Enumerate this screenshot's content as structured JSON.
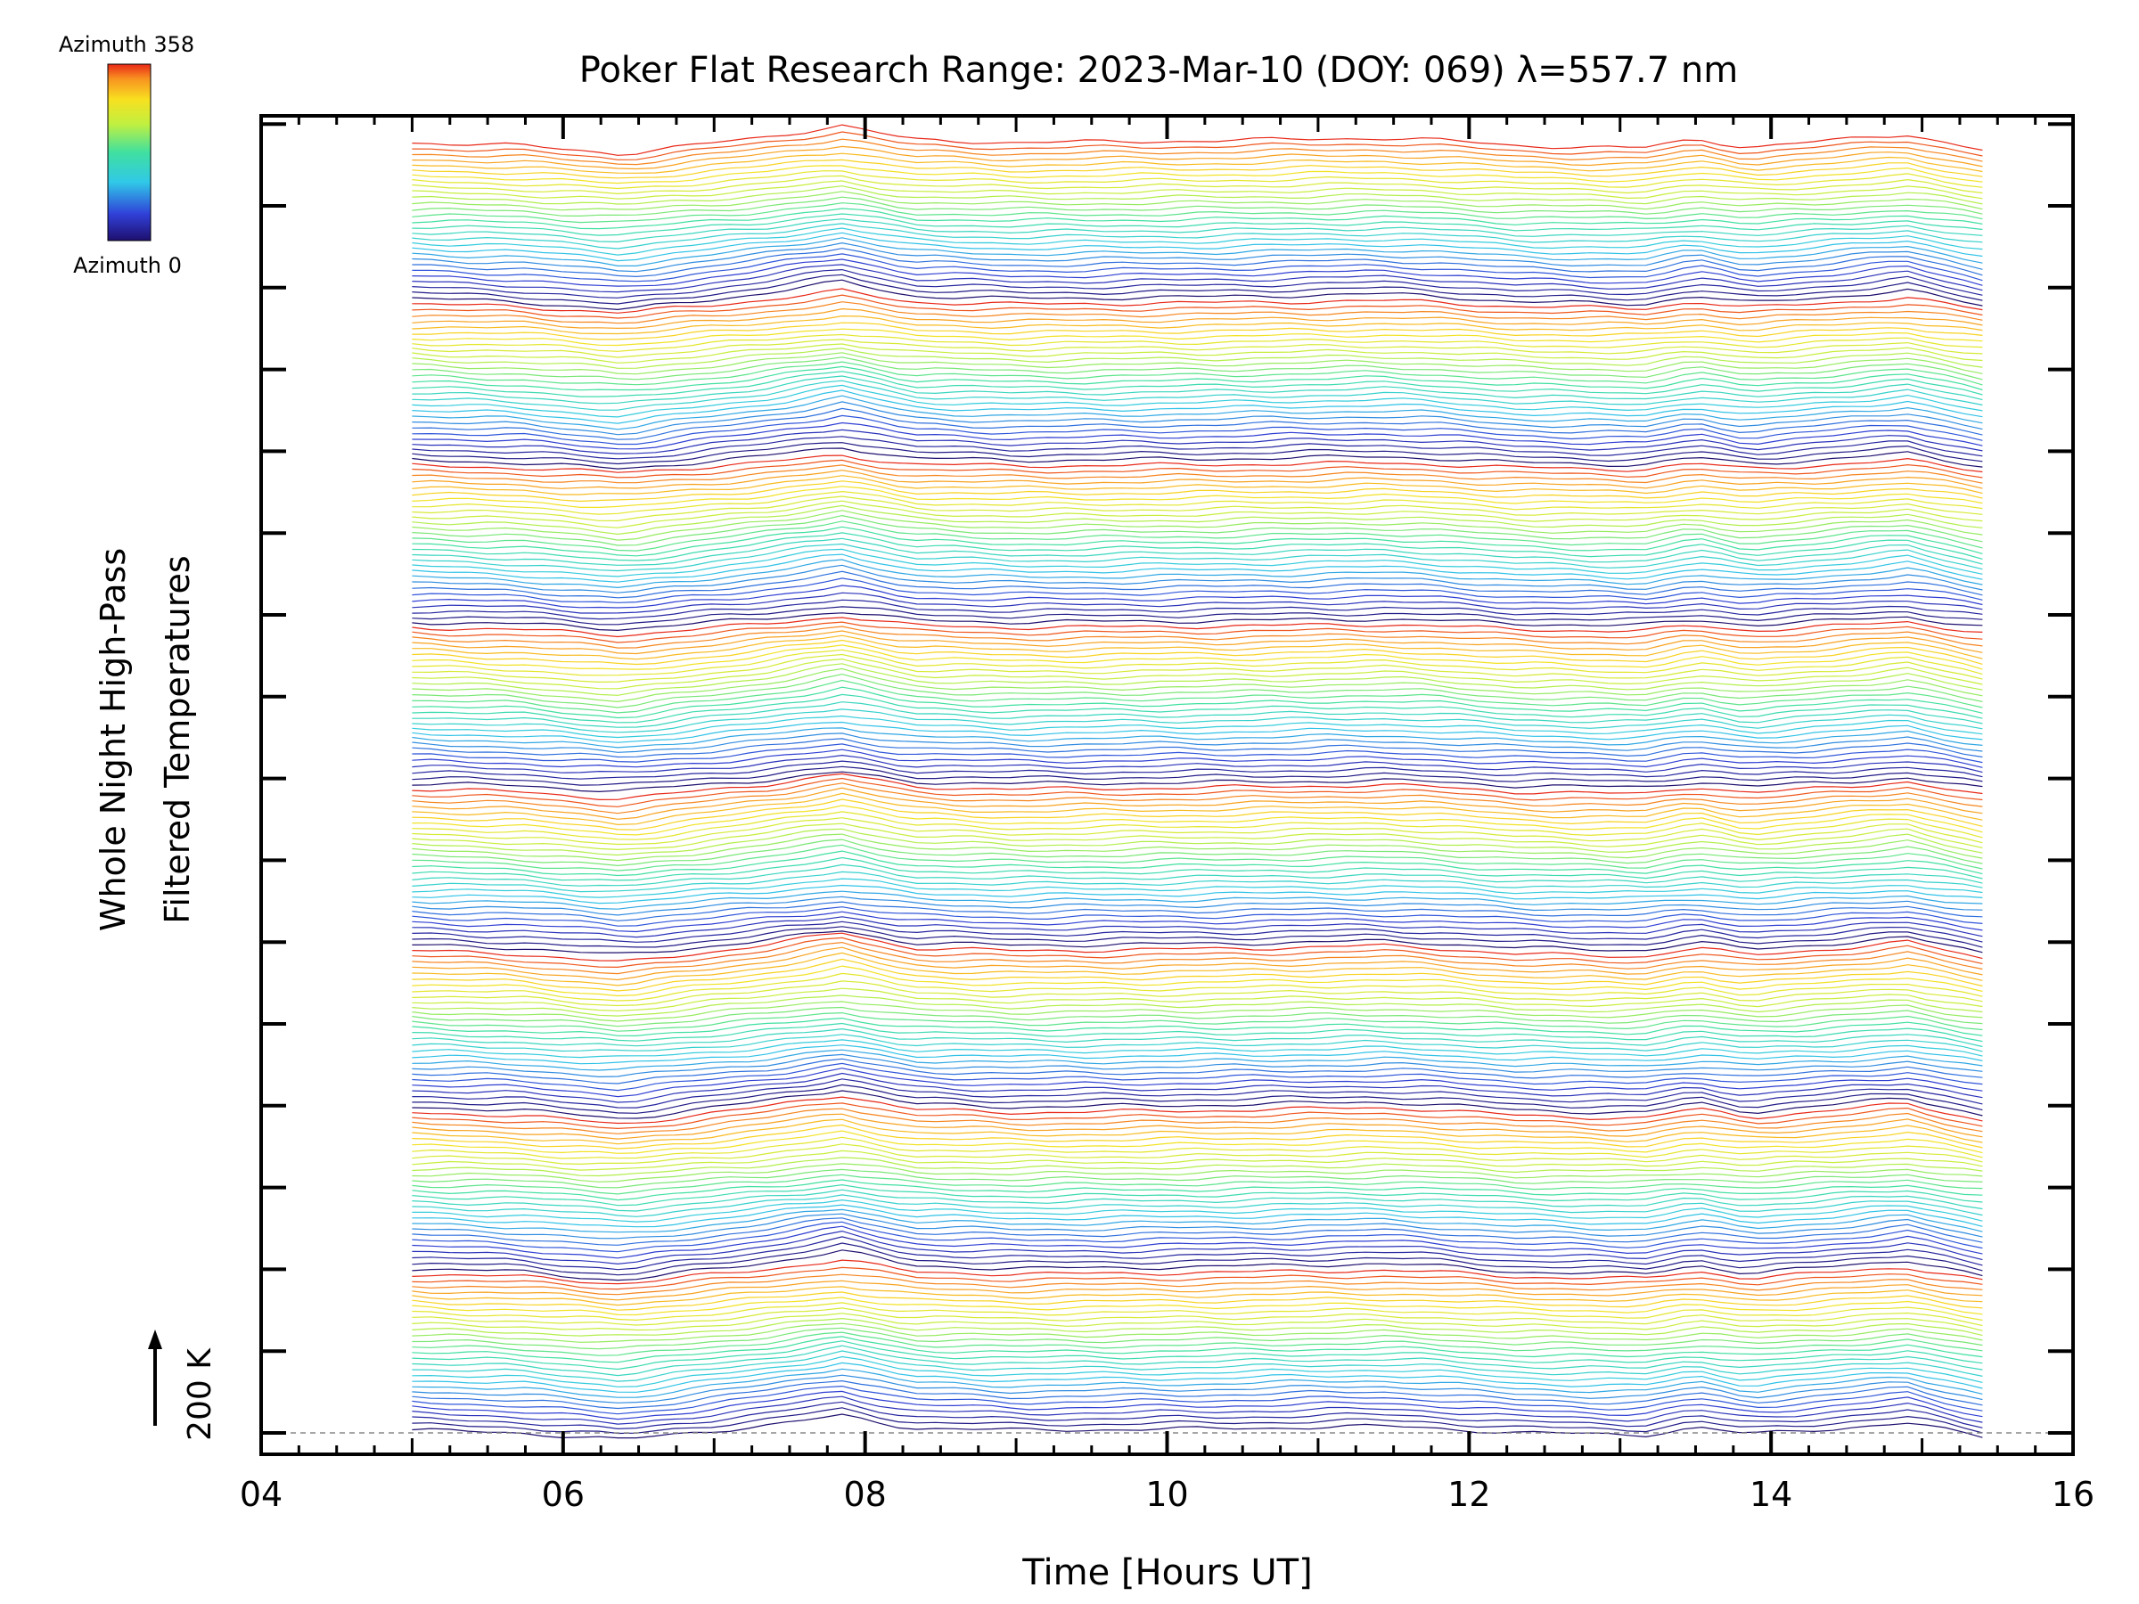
{
  "chart_data": {
    "type": "line",
    "title": "Poker Flat Research Range: 2023-Mar-10 (DOY: 069) λ=557.7 nm",
    "xlabel": "Time [Hours UT]",
    "ylabel_line1": "Whole Night High-Pass",
    "ylabel_line2": "Filtered Temperatures",
    "scale_label": "200 K",
    "xlim": [
      4,
      16
    ],
    "x_ticks": [
      "04",
      "06",
      "08",
      "10",
      "12",
      "14",
      "16"
    ],
    "x_tick_values": [
      4,
      6,
      8,
      10,
      12,
      14,
      16
    ],
    "time_range": [
      5.0,
      15.4
    ],
    "y_major_ticks": 16,
    "colorbar": {
      "top_label": "Azimuth 358",
      "bottom_label": "Azimuth 0",
      "min": 0,
      "max": 358
    },
    "stack": {
      "groups": 8,
      "traces_per_group": 29,
      "note": "stacked filtered temperature traces, one per azimuth 0-358, colored by azimuth"
    },
    "common_shape_times": [
      5.0,
      5.7,
      6.4,
      6.75,
      7.3,
      7.85,
      8.3,
      9.0,
      10.3,
      11.4,
      11.75,
      12.3,
      13.15,
      13.5,
      13.85,
      14.4,
      14.9,
      15.4
    ],
    "common_shape_values": [
      0,
      -3,
      -12,
      -5,
      5,
      18,
      3,
      0,
      2,
      5,
      3,
      -3,
      -6,
      4,
      -5,
      2,
      9,
      -8
    ],
    "grid": false,
    "legend": "colorbar top-left"
  }
}
